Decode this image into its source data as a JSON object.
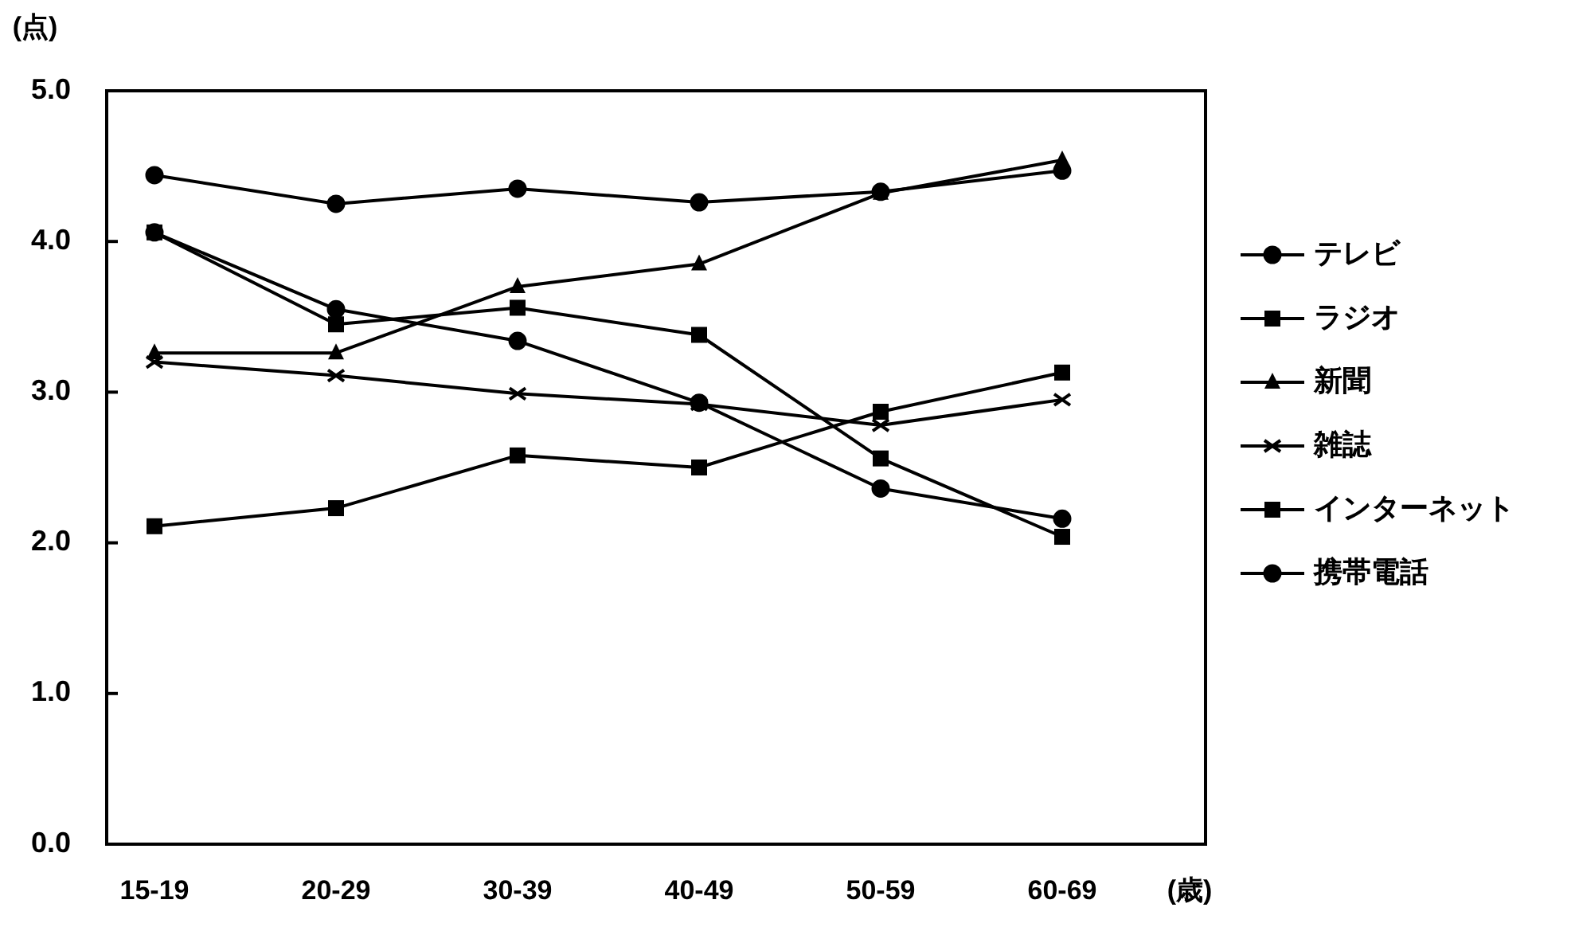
{
  "chart_data": {
    "type": "line",
    "xlabel": "(歳)",
    "ylabel": "(点)",
    "categories": [
      "15-19",
      "20-29",
      "30-39",
      "40-49",
      "50-59",
      "60-69"
    ],
    "ylim": [
      0,
      5
    ],
    "yticks": [
      {
        "value": 0,
        "label": "0.0"
      },
      {
        "value": 1,
        "label": "1.0"
      },
      {
        "value": 2,
        "label": "2.0"
      },
      {
        "value": 3,
        "label": "3.0"
      },
      {
        "value": 4,
        "label": "4.0"
      },
      {
        "value": 5,
        "label": "5.0"
      }
    ],
    "grid": false,
    "legend": "right",
    "line_style": "solid",
    "series": [
      {
        "name": "テレビ",
        "color": "#000000",
        "marker": "circle",
        "values": [
          4.44,
          4.25,
          4.35,
          4.26,
          4.33,
          4.47
        ]
      },
      {
        "name": "ラジオ",
        "color": "#000000",
        "marker": "square",
        "values": [
          2.11,
          2.23,
          2.58,
          2.5,
          2.87,
          3.13
        ]
      },
      {
        "name": "新聞",
        "color": "#000000",
        "marker": "triangle",
        "values": [
          3.26,
          3.26,
          3.7,
          3.85,
          4.32,
          4.54
        ]
      },
      {
        "name": "雑誌",
        "color": "#000000",
        "marker": "cross",
        "values": [
          3.2,
          3.11,
          2.99,
          2.92,
          2.78,
          2.95
        ]
      },
      {
        "name": "インターネット",
        "color": "#000000",
        "marker": "square",
        "values": [
          4.06,
          3.45,
          3.56,
          3.38,
          2.56,
          2.04
        ]
      },
      {
        "name": "携帯電話",
        "color": "#000000",
        "marker": "circle",
        "values": [
          4.06,
          3.55,
          3.34,
          2.93,
          2.36,
          2.16
        ]
      }
    ]
  }
}
